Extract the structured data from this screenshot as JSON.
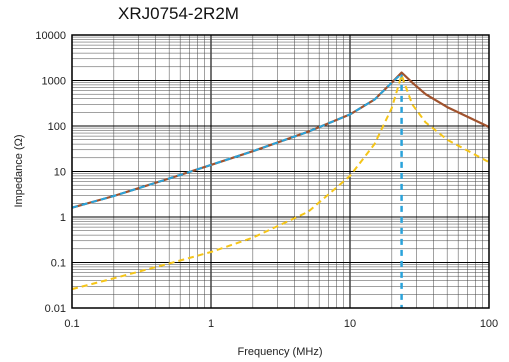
{
  "chart_data": {
    "type": "line",
    "title": "XRJ0754-2R2M",
    "xlabel": "Frequency (MHz)",
    "ylabel": "Impedance (Ω)",
    "x_scale": "log",
    "y_scale": "log",
    "xlim": [
      0.1,
      100
    ],
    "ylim": [
      0.01,
      10000
    ],
    "x_ticks": [
      0.1,
      1,
      10,
      100
    ],
    "x_tick_labels": [
      "0.1",
      "1",
      "10",
      "100"
    ],
    "y_ticks": [
      0.01,
      0.1,
      1,
      10,
      100,
      1000,
      10000
    ],
    "y_tick_labels": [
      "0.01",
      "0.1",
      "1",
      "10",
      "100",
      "1000",
      "10000"
    ],
    "grid": true,
    "series": [
      {
        "color": "#a0522d",
        "style": "solid",
        "points": [
          [
            0.1,
            1.6
          ],
          [
            0.2,
            2.9
          ],
          [
            0.5,
            7.0
          ],
          [
            1,
            14
          ],
          [
            2,
            28
          ],
          [
            5,
            75
          ],
          [
            10,
            180
          ],
          [
            15,
            380
          ],
          [
            20,
            900
          ],
          [
            23.5,
            1500
          ],
          [
            28,
            900
          ],
          [
            35,
            500
          ],
          [
            50,
            260
          ],
          [
            70,
            160
          ],
          [
            100,
            95
          ]
        ]
      },
      {
        "color": "#29a3db",
        "style": "dashed",
        "points": [
          [
            0.1,
            1.6
          ],
          [
            0.2,
            2.9
          ],
          [
            0.5,
            7.0
          ],
          [
            1,
            14
          ],
          [
            2,
            28
          ],
          [
            5,
            75
          ],
          [
            10,
            180
          ],
          [
            15,
            380
          ],
          [
            20,
            900
          ],
          [
            23.5,
            1400
          ]
        ]
      },
      {
        "color": "#f5c518",
        "style": "dashed",
        "points": [
          [
            0.1,
            0.026
          ],
          [
            0.2,
            0.045
          ],
          [
            0.5,
            0.095
          ],
          [
            1,
            0.17
          ],
          [
            2,
            0.35
          ],
          [
            5,
            1.3
          ],
          [
            10,
            8
          ],
          [
            15,
            40
          ],
          [
            20,
            250
          ],
          [
            23.5,
            1300
          ],
          [
            28,
            300
          ],
          [
            35,
            120
          ],
          [
            50,
            50
          ],
          [
            100,
            16
          ]
        ]
      }
    ],
    "vertical_marker": {
      "x": 23.5,
      "color": "#29a3db",
      "style": "dashed"
    }
  }
}
